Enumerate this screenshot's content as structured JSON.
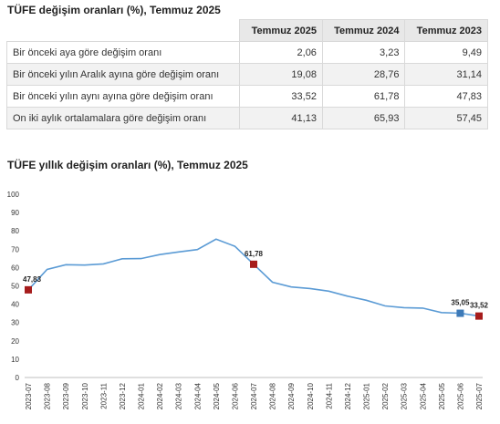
{
  "table_title": "TÜFE değişim oranları (%), Temmuz 2025",
  "table": {
    "headers": [
      "",
      "Temmuz 2025",
      "Temmuz 2024",
      "Temmuz 2023"
    ],
    "rows": [
      {
        "label": "Bir önceki aya göre değişim oranı",
        "values": [
          "2,06",
          "3,23",
          "9,49"
        ]
      },
      {
        "label": "Bir önceki yılın Aralık ayına göre değişim oranı",
        "values": [
          "19,08",
          "28,76",
          "31,14"
        ]
      },
      {
        "label": "Bir önceki yılın aynı ayına göre değişim oranı",
        "values": [
          "33,52",
          "61,78",
          "47,83"
        ]
      },
      {
        "label": "On iki aylık ortalamalara göre değişim oranı",
        "values": [
          "41,13",
          "65,93",
          "57,45"
        ]
      }
    ]
  },
  "chart_title": "TÜFE yıllık değişim oranları (%), Temmuz 2025",
  "chart_data": {
    "type": "line",
    "title": "TÜFE yıllık değişim oranları (%), Temmuz 2025",
    "xlabel": "",
    "ylabel": "",
    "ylim": [
      0,
      100
    ],
    "yticks": [
      0,
      10,
      20,
      30,
      40,
      50,
      60,
      70,
      80,
      90,
      100
    ],
    "grid": false,
    "categories": [
      "2023-07",
      "2023-08",
      "2023-09",
      "2023-10",
      "2023-11",
      "2023-12",
      "2024-01",
      "2024-02",
      "2024-03",
      "2024-04",
      "2024-05",
      "2024-06",
      "2024-07",
      "2024-08",
      "2024-09",
      "2024-10",
      "2024-11",
      "2024-12",
      "2025-01",
      "2025-02",
      "2025-03",
      "2025-04",
      "2025-05",
      "2025-06",
      "2025-07"
    ],
    "values": [
      47.83,
      58.94,
      61.53,
      61.36,
      61.98,
      64.77,
      64.86,
      67.07,
      68.5,
      69.8,
      75.45,
      71.6,
      61.78,
      51.97,
      49.38,
      48.58,
      47.09,
      44.38,
      42.12,
      39.05,
      38.1,
      37.86,
      35.41,
      35.05,
      33.52
    ],
    "line_color": "#5b9bd5",
    "markers": [
      {
        "category": "2023-07",
        "value": 47.83,
        "label": "47,83",
        "color": "#a61c1c"
      },
      {
        "category": "2024-07",
        "value": 61.78,
        "label": "61,78",
        "color": "#a61c1c"
      },
      {
        "category": "2025-06",
        "value": 35.05,
        "label": "35,05",
        "color": "#3d7ab8"
      },
      {
        "category": "2025-07",
        "value": 33.52,
        "label": "33,52",
        "color": "#a61c1c"
      }
    ]
  }
}
